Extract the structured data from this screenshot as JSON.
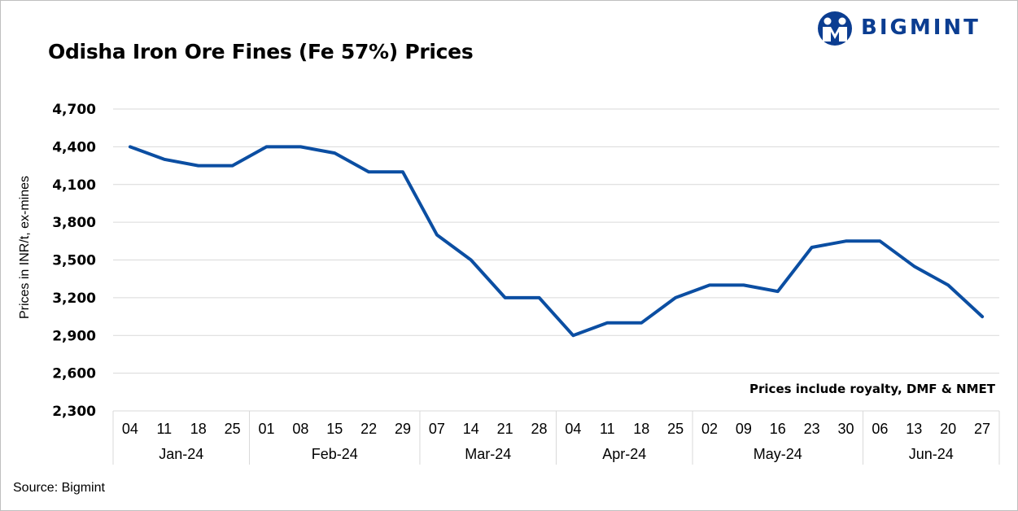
{
  "title": "Odisha Iron Ore Fines (Fe 57%) Prices",
  "brand": {
    "name": "BIGMINT",
    "color": "#0b3d91"
  },
  "source": "Source: Bigmint",
  "chart_data": {
    "type": "line",
    "title": "Odisha Iron Ore Fines (Fe 57%) Prices",
    "ylabel": "Prices in INR/t, ex-mines",
    "xlabel": "",
    "ylim": [
      2300,
      4700
    ],
    "yticks": [
      2300,
      2600,
      2900,
      3200,
      3500,
      3800,
      4100,
      4400,
      4700
    ],
    "ytick_labels": [
      "2,300",
      "2,600",
      "2,900",
      "3,200",
      "3,500",
      "3,800",
      "4,100",
      "4,400",
      "4,700"
    ],
    "grid": true,
    "line_color": "#0b4ea2",
    "annotation": "Prices include royalty, DMF & NMET",
    "categories": [
      "04",
      "11",
      "18",
      "25",
      "01",
      "08",
      "15",
      "22",
      "29",
      "07",
      "14",
      "21",
      "28",
      "04",
      "11",
      "18",
      "25",
      "02",
      "09",
      "16",
      "23",
      "30",
      "06",
      "13",
      "20",
      "27"
    ],
    "groups": [
      {
        "label": "Jan-24",
        "count": 4
      },
      {
        "label": "Feb-24",
        "count": 5
      },
      {
        "label": "Mar-24",
        "count": 4
      },
      {
        "label": "Apr-24",
        "count": 4
      },
      {
        "label": "May-24",
        "count": 5
      },
      {
        "label": "Jun-24",
        "count": 4
      }
    ],
    "series": [
      {
        "values": [
          4400,
          4300,
          4250,
          4250,
          4400,
          4400,
          4350,
          4200,
          4200,
          3700,
          3500,
          3200,
          3200,
          2900,
          3000,
          3000,
          3200,
          3300,
          3300,
          3250,
          3600,
          3650,
          3650,
          3450,
          3300,
          3050
        ]
      }
    ]
  }
}
